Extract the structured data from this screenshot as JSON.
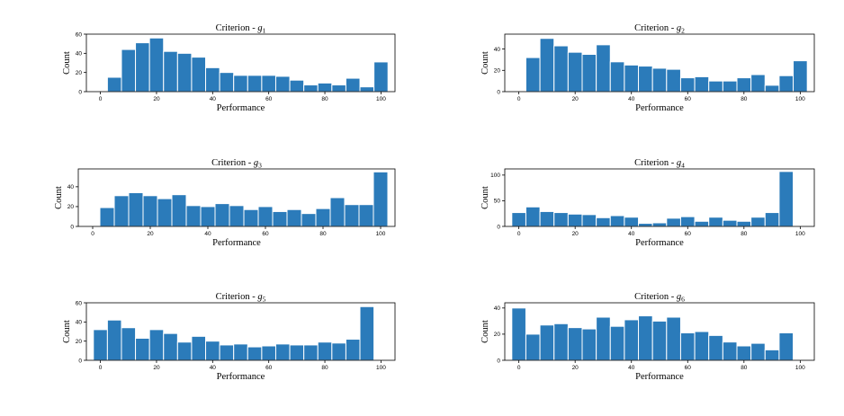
{
  "chart_data": [
    {
      "type": "bar",
      "title_prefix": "Criterion - ",
      "title_symbol": "g",
      "title_sub": "1",
      "xlabel": "Performance",
      "ylabel": "Count",
      "xlim": [
        -5,
        105
      ],
      "ylim": [
        0,
        60
      ],
      "xticks": [
        0,
        20,
        40,
        60,
        80,
        100
      ],
      "yticks": [
        0,
        20,
        40,
        60
      ],
      "bin_width": 5,
      "bin_starts": [
        2.5,
        7.5,
        12.5,
        17.5,
        22.5,
        27.5,
        32.5,
        37.5,
        42.5,
        47.5,
        52.5,
        57.5,
        62.5,
        67.5,
        72.5,
        77.5,
        82.5,
        87.5,
        92.5,
        97.5
      ],
      "values": [
        15,
        44,
        51,
        56,
        42,
        40,
        36,
        25,
        20,
        17,
        17,
        17,
        16,
        12,
        7,
        9,
        7,
        14,
        5,
        31
      ]
    },
    {
      "type": "bar",
      "title_prefix": "Criterion - ",
      "title_symbol": "g",
      "title_sub": "2",
      "xlabel": "Performance",
      "ylabel": "Count",
      "xlim": [
        -5,
        105
      ],
      "ylim": [
        0,
        54
      ],
      "xticks": [
        0,
        20,
        40,
        60,
        80,
        100
      ],
      "yticks": [
        0,
        20,
        40
      ],
      "bin_width": 5,
      "bin_starts": [
        2.5,
        7.5,
        12.5,
        17.5,
        22.5,
        27.5,
        32.5,
        37.5,
        42.5,
        47.5,
        52.5,
        57.5,
        62.5,
        67.5,
        72.5,
        77.5,
        82.5,
        87.5,
        92.5,
        97.5
      ],
      "values": [
        32,
        50,
        43,
        37,
        35,
        44,
        28,
        25,
        24,
        22,
        21,
        13,
        14,
        10,
        10,
        13,
        16,
        6,
        15,
        29
      ]
    },
    {
      "type": "bar",
      "title_prefix": "Criterion - ",
      "title_symbol": "g",
      "title_sub": "3",
      "xlabel": "Performance",
      "ylabel": "Count",
      "xlim": [
        -5,
        105
      ],
      "ylim": [
        0,
        58
      ],
      "xticks": [
        0,
        20,
        40,
        60,
        80,
        100
      ],
      "yticks": [
        0,
        20,
        40
      ],
      "bin_width": 5,
      "bin_starts": [
        2.5,
        7.5,
        12.5,
        17.5,
        22.5,
        27.5,
        32.5,
        37.5,
        42.5,
        47.5,
        52.5,
        57.5,
        62.5,
        67.5,
        72.5,
        77.5,
        82.5,
        87.5,
        92.5,
        97.5
      ],
      "values": [
        19,
        31,
        34,
        31,
        28,
        32,
        21,
        20,
        23,
        21,
        17,
        20,
        15,
        17,
        13,
        18,
        29,
        22,
        22,
        55
      ]
    },
    {
      "type": "bar",
      "title_prefix": "Criterion - ",
      "title_symbol": "g",
      "title_sub": "4",
      "xlabel": "Performance",
      "ylabel": "Count",
      "xlim": [
        -5,
        105
      ],
      "ylim": [
        0,
        112
      ],
      "xticks": [
        0,
        20,
        40,
        60,
        80,
        100
      ],
      "yticks": [
        0,
        50,
        100
      ],
      "bin_width": 5,
      "bin_starts": [
        -2.5,
        2.5,
        7.5,
        12.5,
        17.5,
        22.5,
        27.5,
        32.5,
        37.5,
        42.5,
        47.5,
        52.5,
        57.5,
        62.5,
        67.5,
        72.5,
        77.5,
        82.5,
        87.5,
        92.5
      ],
      "values": [
        27,
        38,
        29,
        27,
        24,
        23,
        17,
        21,
        18,
        6,
        7,
        16,
        19,
        10,
        18,
        12,
        10,
        18,
        27,
        107
      ]
    },
    {
      "type": "bar",
      "title_prefix": "Criterion - ",
      "title_symbol": "g",
      "title_sub": "5",
      "xlabel": "Performance",
      "ylabel": "Count",
      "xlim": [
        -5,
        105
      ],
      "ylim": [
        0,
        60
      ],
      "xticks": [
        0,
        20,
        40,
        60,
        80,
        100
      ],
      "yticks": [
        0,
        20,
        40,
        60
      ],
      "bin_width": 5,
      "bin_starts": [
        -2.5,
        2.5,
        7.5,
        12.5,
        17.5,
        22.5,
        27.5,
        32.5,
        37.5,
        42.5,
        47.5,
        52.5,
        57.5,
        62.5,
        67.5,
        72.5,
        77.5,
        82.5,
        87.5,
        92.5
      ],
      "values": [
        32,
        42,
        34,
        23,
        32,
        28,
        19,
        25,
        20,
        16,
        17,
        14,
        15,
        17,
        16,
        16,
        19,
        18,
        22,
        56
      ]
    },
    {
      "type": "bar",
      "title_prefix": "Criterion - ",
      "title_symbol": "g",
      "title_sub": "6",
      "xlabel": "Performance",
      "ylabel": "Count",
      "xlim": [
        -5,
        105
      ],
      "ylim": [
        0,
        44
      ],
      "xticks": [
        0,
        20,
        40,
        60,
        80,
        100
      ],
      "yticks": [
        0,
        20,
        40
      ],
      "bin_width": 5,
      "bin_starts": [
        -2.5,
        2.5,
        7.5,
        12.5,
        17.5,
        22.5,
        27.5,
        32.5,
        37.5,
        42.5,
        47.5,
        52.5,
        57.5,
        62.5,
        67.5,
        72.5,
        77.5,
        82.5,
        87.5,
        92.5
      ],
      "values": [
        40,
        20,
        27,
        28,
        25,
        24,
        33,
        26,
        31,
        34,
        30,
        33,
        21,
        22,
        19,
        14,
        11,
        13,
        8,
        21
      ]
    }
  ]
}
